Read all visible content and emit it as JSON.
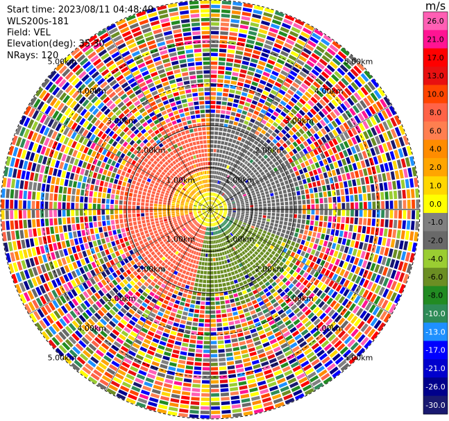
{
  "info": {
    "start_time": "Start time: 2023/08/11 04:48:49",
    "instrument": "WLS200s-181",
    "field": "Field: VEL",
    "elevation": "Elevation(deg): 35.30",
    "nrays": "NRays: 120"
  },
  "chart_data": {
    "type": "heatmap",
    "title": "",
    "projection": "polar (PPI)",
    "units": "m/s",
    "n_rays": 120,
    "range_rings_km": [
      1.0,
      2.0,
      3.0,
      4.0,
      5.0
    ],
    "range_ring_labels": [
      "1.00km",
      "2.00km",
      "3.00km",
      "4.00km",
      "5.00km"
    ],
    "colorbar": {
      "label": "m/s",
      "ticks": [
        "26.0",
        "21.0",
        "17.0",
        "13.0",
        "10.0",
        "8.0",
        "6.0",
        "4.0",
        "2.0",
        "1.0",
        "0.0",
        "-1.0",
        "-2.0",
        "-4.0",
        "-6.0",
        "-8.0",
        "-10.0",
        "-13.0",
        "-17.0",
        "-21.0",
        "-26.0",
        "-30.0"
      ],
      "colors": [
        "#ff5fb4",
        "#ff1493",
        "#ff0000",
        "#e81010",
        "#ff4500",
        "#ff6347",
        "#ff7f50",
        "#ff8c00",
        "#ffa500",
        "#ffd700",
        "#ffff00",
        "#808080",
        "#696969",
        "#9acd32",
        "#6b8e23",
        "#228b22",
        "#2e8b57",
        "#1e90ff",
        "#0000ff",
        "#0000cd",
        "#00008b",
        "#191970"
      ]
    },
    "velocity_pattern": {
      "north_west_sector_ms": 8.0,
      "east_sector_ms": -2.0,
      "south_sector_ms": -6.0,
      "near_center_ms": 0.0
    }
  }
}
